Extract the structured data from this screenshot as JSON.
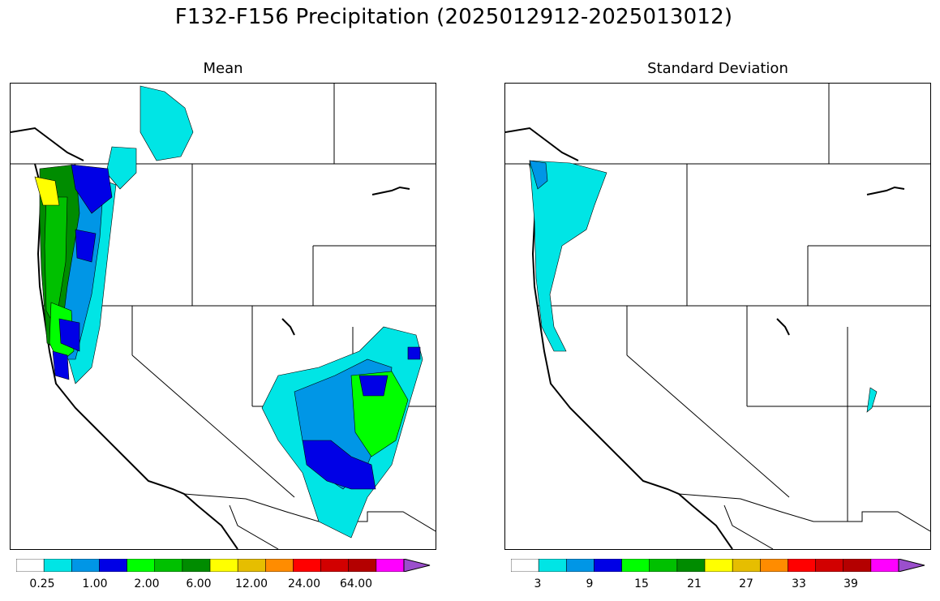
{
  "title": "F132-F156 Precipitation (2025012912-2025013012)",
  "panels": {
    "mean": {
      "title": "Mean",
      "colorbar_labels": [
        "0.25",
        "1.00",
        "2.00",
        "6.00",
        "12.00",
        "24.00",
        "64.00"
      ]
    },
    "std": {
      "title": "Standard Deviation",
      "colorbar_labels": [
        "3",
        "9",
        "15",
        "21",
        "27",
        "33",
        "39"
      ]
    }
  },
  "colorbar_colors": [
    "#ffffff",
    "#00e5e5",
    "#0096e6",
    "#0000e6",
    "#00ff00",
    "#00c000",
    "#008c00",
    "#ffff00",
    "#e6be00",
    "#ff8c00",
    "#ff0000",
    "#d20000",
    "#b40000",
    "#ff00ff",
    "#9b4fcc"
  ]
}
